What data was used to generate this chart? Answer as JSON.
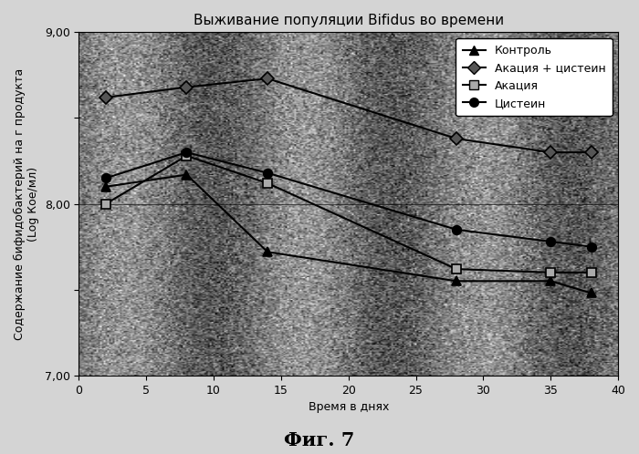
{
  "title": "Выживание популяции Bifidus во времени",
  "xlabel": "Время в днях",
  "ylabel": "Содержание бифидобактерий на г продукта\n(Log Кое/мл)",
  "fig_label": "Фиг. 7",
  "xlim": [
    0,
    40
  ],
  "ylim": [
    7.0,
    9.0
  ],
  "yticks": [
    7.0,
    7.5,
    8.0,
    8.5,
    9.0
  ],
  "ytick_labels": [
    "7,00",
    "",
    "8,00",
    "",
    "9,00"
  ],
  "xticks": [
    0,
    5,
    10,
    15,
    20,
    25,
    30,
    35,
    40
  ],
  "series": [
    {
      "name": "Контроль",
      "x": [
        2,
        8,
        14,
        28,
        35,
        38
      ],
      "y": [
        8.1,
        8.17,
        7.72,
        7.55,
        7.55,
        7.48
      ],
      "marker": "^",
      "color": "#000000",
      "linewidth": 1.5,
      "markersize": 7,
      "markerfacecolor": "#000000"
    },
    {
      "name": "Акация + цистеин",
      "x": [
        2,
        8,
        14,
        28,
        35,
        38
      ],
      "y": [
        8.62,
        8.68,
        8.73,
        8.38,
        8.3,
        8.3
      ],
      "marker": "D",
      "color": "#000000",
      "linewidth": 1.5,
      "markersize": 7,
      "markerfacecolor": "#555555"
    },
    {
      "name": "Акация",
      "x": [
        2,
        8,
        14,
        28,
        35,
        38
      ],
      "y": [
        8.0,
        8.28,
        8.12,
        7.62,
        7.6,
        7.6
      ],
      "marker": "s",
      "color": "#000000",
      "linewidth": 1.5,
      "markersize": 7,
      "markerfacecolor": "#aaaaaa"
    },
    {
      "name": "Цистеин",
      "x": [
        2,
        8,
        14,
        28,
        35,
        38
      ],
      "y": [
        8.15,
        8.3,
        8.18,
        7.85,
        7.78,
        7.75
      ],
      "marker": "o",
      "color": "#000000",
      "linewidth": 1.5,
      "markersize": 7,
      "markerfacecolor": "#000000"
    }
  ],
  "bg_color": "#d4d4d4",
  "plot_bg_mean": 0.72,
  "plot_bg_std": 0.08,
  "legend_bg_color": "#ffffff",
  "title_fontsize": 11,
  "axis_label_fontsize": 9,
  "tick_fontsize": 9,
  "fig_label_fontsize": 15
}
